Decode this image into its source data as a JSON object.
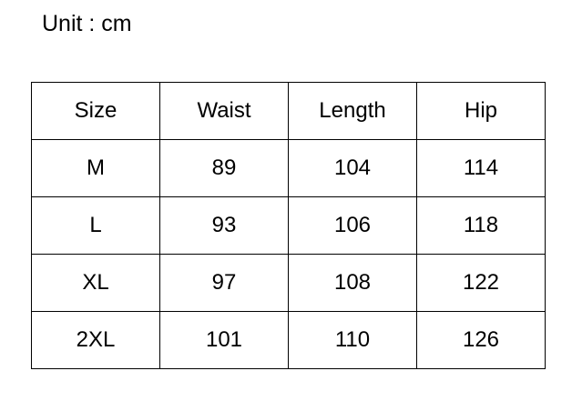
{
  "unit_label": "Unit : cm",
  "table": {
    "headers": [
      "Size",
      "Waist",
      "Length",
      "Hip"
    ],
    "rows": [
      [
        "M",
        "89",
        "104",
        "114"
      ],
      [
        "L",
        "93",
        "106",
        "118"
      ],
      [
        "XL",
        "97",
        "108",
        "122"
      ],
      [
        "2XL",
        "101",
        "110",
        "126"
      ]
    ]
  }
}
